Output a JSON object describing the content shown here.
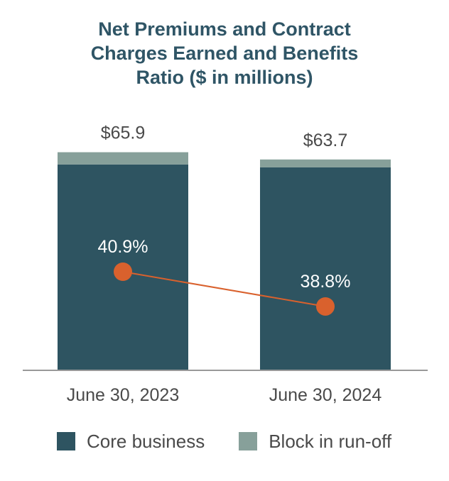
{
  "title_lines": [
    "Net Premiums and Contract",
    "Charges Earned and Benefits",
    "Ratio ($ in millions)"
  ],
  "colors": {
    "core": "#2e5461",
    "runoff": "#87a09a",
    "line": "#d9612d",
    "title": "#2f5566",
    "text": "#4a4a4a",
    "axis": "#999999"
  },
  "chart_data": {
    "type": "bar",
    "stacked": true,
    "title": "Net Premiums and Contract Charges Earned and Benefits Ratio ($ in millions)",
    "categories": [
      "June 30, 2023",
      "June 30, 2024"
    ],
    "series": [
      {
        "name": "Core business",
        "values": [
          62.2,
          61.3
        ]
      },
      {
        "name": "Block in run-off",
        "values": [
          3.7,
          2.4
        ]
      }
    ],
    "totals": [
      65.9,
      63.7
    ],
    "total_labels": [
      "$65.9",
      "$63.7"
    ],
    "ylim": [
      0,
      70
    ],
    "line_series": {
      "name": "Benefits ratio",
      "values": [
        40.9,
        38.8
      ],
      "labels": [
        "40.9%",
        "38.8%"
      ],
      "ylim": [
        30,
        50
      ]
    },
    "legend": [
      "Core business",
      "Block in run-off"
    ],
    "legend_position": "bottom"
  }
}
